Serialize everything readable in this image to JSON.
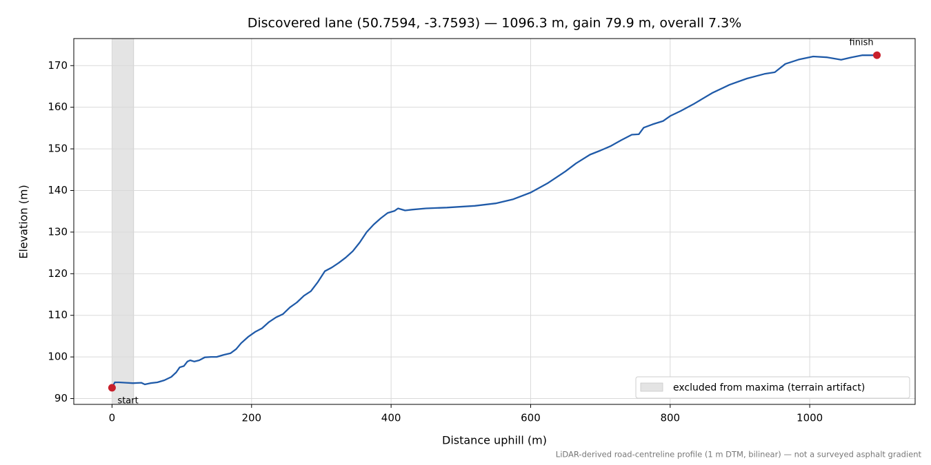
{
  "chart_data": {
    "type": "line",
    "title": "Discovered lane (50.7594, -3.7593) — 1096.3 m, gain 79.9 m, overall 7.3%",
    "xlabel": "Distance uphill (m)",
    "ylabel": "Elevation (m)",
    "footnote": "LiDAR-derived road-centreline profile (1 m DTM, bilinear) — not a surveyed asphalt gradient",
    "color": "#1f5aa8",
    "x": [
      0,
      4,
      10,
      20,
      30,
      42,
      47,
      55,
      65,
      75,
      85,
      92,
      97,
      103,
      108,
      112,
      118,
      125,
      133,
      142,
      150,
      160,
      170,
      178,
      185,
      195,
      205,
      215,
      225,
      235,
      245,
      255,
      265,
      275,
      285,
      295,
      305,
      315,
      325,
      335,
      345,
      355,
      365,
      375,
      385,
      395,
      405,
      410,
      420,
      430,
      450,
      480,
      520,
      550,
      575,
      600,
      625,
      650,
      665,
      685,
      700,
      715,
      730,
      745,
      755,
      762,
      775,
      790,
      800,
      815,
      835,
      860,
      885,
      910,
      935,
      950,
      965,
      985,
      1005,
      1025,
      1045,
      1060,
      1075,
      1096.3
    ],
    "values": [
      92.6,
      93.9,
      93.9,
      93.8,
      93.7,
      93.8,
      93.4,
      93.7,
      93.9,
      94.4,
      95.2,
      96.3,
      97.5,
      97.8,
      98.9,
      99.2,
      98.9,
      99.2,
      99.9,
      100.0,
      100.0,
      100.5,
      100.9,
      101.9,
      103.3,
      104.8,
      106.0,
      106.9,
      108.4,
      109.5,
      110.3,
      111.9,
      113.1,
      114.7,
      115.8,
      118.0,
      120.6,
      121.5,
      122.6,
      123.9,
      125.4,
      127.5,
      130.0,
      131.8,
      133.3,
      134.6,
      135.1,
      135.7,
      135.2,
      135.4,
      135.7,
      135.9,
      136.3,
      136.9,
      137.9,
      139.5,
      141.8,
      144.6,
      146.5,
      148.6,
      149.6,
      150.7,
      152.1,
      153.4,
      153.5,
      155.1,
      155.9,
      156.7,
      157.9,
      159.1,
      160.9,
      163.4,
      165.4,
      166.9,
      168.0,
      168.4,
      170.4,
      171.5,
      172.2,
      172.0,
      171.4,
      172.0,
      172.5,
      172.5
    ],
    "markers": [
      {
        "label": "start",
        "x": 0,
        "y": 92.6,
        "color": "#c8202c"
      },
      {
        "label": "finish",
        "x": 1096.3,
        "y": 172.5,
        "color": "#c8202c"
      }
    ],
    "shaded_span": {
      "label": "excluded from maxima (terrain artifact)",
      "x": [
        0,
        31
      ],
      "color": "#e4e4e4"
    },
    "legend": "lower right",
    "grid": true,
    "xlim": [
      -54.8,
      1151.1
    ],
    "ylim": [
      88.6,
      176.5
    ],
    "xticks": [
      0,
      200,
      400,
      600,
      800,
      1000
    ],
    "yticks": [
      90,
      100,
      110,
      120,
      130,
      140,
      150,
      160,
      170
    ]
  }
}
